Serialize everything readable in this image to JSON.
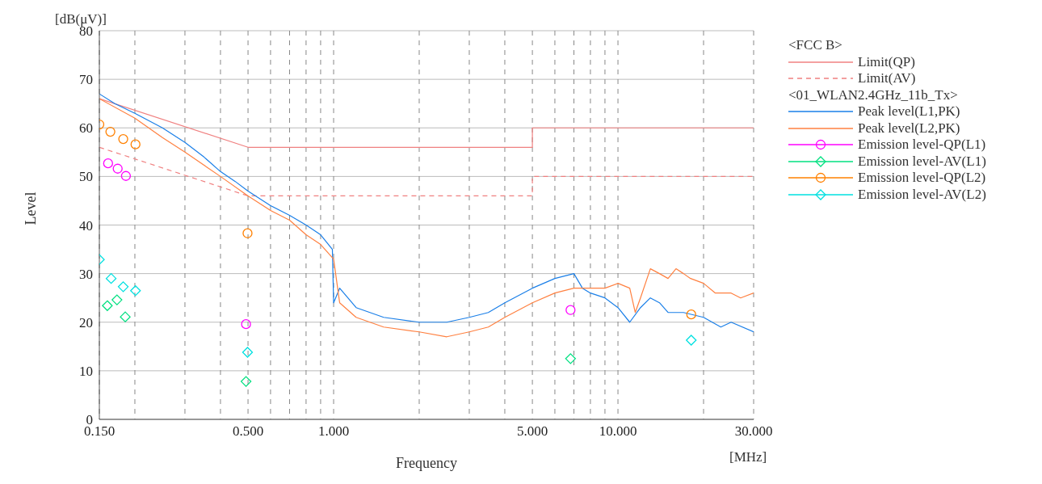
{
  "chart_data": {
    "type": "line",
    "xlabel": "Frequency",
    "ylabel": "Level",
    "log": "x",
    "grid": true,
    "legend": "right",
    "xlim": [
      0.15,
      30
    ],
    "ylim": [
      0,
      80
    ],
    "xticks": [
      {
        "value": 0.15,
        "label": "0.150"
      },
      {
        "value": 0.2,
        "label": null
      },
      {
        "value": 0.3,
        "label": null
      },
      {
        "value": 0.4,
        "label": null
      },
      {
        "value": 0.5,
        "label": "0.500"
      },
      {
        "value": 0.6,
        "label": null
      },
      {
        "value": 0.7,
        "label": null
      },
      {
        "value": 0.8,
        "label": null
      },
      {
        "value": 0.9,
        "label": null
      },
      {
        "value": 1,
        "label": "1.000"
      },
      {
        "value": 2,
        "label": null
      },
      {
        "value": 3,
        "label": null
      },
      {
        "value": 4,
        "label": null
      },
      {
        "value": 5,
        "label": "5.000"
      },
      {
        "value": 6,
        "label": null
      },
      {
        "value": 7,
        "label": null
      },
      {
        "value": 8,
        "label": null
      },
      {
        "value": 9,
        "label": null
      },
      {
        "value": 10,
        "label": "10.000"
      },
      {
        "value": 20,
        "label": null
      },
      {
        "value": 30,
        "label": "30.000"
      }
    ],
    "yticks": [
      0,
      10,
      20,
      30,
      40,
      50,
      60,
      70,
      80
    ],
    "annotations": [
      "[dB(μV)]",
      "[MHz]",
      "<FCC B>",
      "<01_WLAN2.4GHz_11b_Tx>"
    ],
    "series": [
      {
        "name": "Limit(QP)",
        "color": "#f08080",
        "line_style": "solid",
        "marker": "none",
        "x": [
          0.15,
          0.5,
          5,
          5,
          30
        ],
        "values": [
          66,
          56,
          56,
          60,
          60
        ]
      },
      {
        "name": "Limit(AV)",
        "color": "#f08080",
        "line_style": "dashed",
        "marker": "none",
        "x": [
          0.15,
          0.5,
          5,
          5,
          30
        ],
        "values": [
          56,
          46,
          46,
          50,
          50
        ]
      },
      {
        "name": "Peak level(L1,PK)",
        "color": "#1a7fe8",
        "line_style": "solid",
        "marker": "none",
        "x": [
          0.15,
          0.17,
          0.2,
          0.25,
          0.3,
          0.35,
          0.4,
          0.45,
          0.5,
          0.6,
          0.7,
          0.8,
          0.9,
          0.99,
          1.0,
          1.05,
          1.2,
          1.5,
          2,
          2.5,
          3,
          3.5,
          4,
          5,
          6,
          7,
          7.5,
          8,
          9,
          10,
          11,
          12,
          13,
          14,
          15,
          17,
          20,
          23,
          25,
          30
        ],
        "values": [
          67,
          65,
          63,
          60,
          57,
          54,
          51,
          49,
          47,
          44,
          42,
          40,
          38,
          35,
          24,
          27,
          23,
          21,
          20,
          20,
          21,
          22,
          24,
          27,
          29,
          30,
          27,
          26,
          25,
          23,
          20,
          23,
          25,
          24,
          22,
          22,
          21,
          19,
          20,
          18
        ]
      },
      {
        "name": "Peak level(L2,PK)",
        "color": "#ff8040",
        "line_style": "solid",
        "marker": "none",
        "x": [
          0.15,
          0.2,
          0.25,
          0.3,
          0.4,
          0.5,
          0.6,
          0.7,
          0.8,
          0.9,
          1.0,
          1.05,
          1.2,
          1.5,
          2,
          2.5,
          3,
          3.5,
          4,
          5,
          6,
          7,
          8,
          9,
          10,
          11,
          11.5,
          12,
          13,
          14,
          15,
          16,
          17,
          18,
          20,
          22,
          25,
          27,
          30
        ],
        "values": [
          66,
          62,
          58,
          55,
          50,
          46,
          43,
          41,
          38,
          36,
          33,
          24,
          21,
          19,
          18,
          17,
          18,
          19,
          21,
          24,
          26,
          27,
          27,
          27,
          28,
          27,
          22,
          25,
          31,
          30,
          29,
          31,
          30,
          29,
          28,
          26,
          26,
          25,
          26
        ]
      },
      {
        "name": "Emission level-QP(L1)",
        "type": "scatter",
        "color": "#ff00ff",
        "marker": "circle",
        "x": [
          0.161,
          0.174,
          0.186,
          0.492,
          6.81
        ],
        "values": [
          52.7,
          51.6,
          50.1,
          19.6,
          22.5
        ]
      },
      {
        "name": "Emission level-AV(L1)",
        "type": "scatter",
        "color": "#00e080",
        "marker": "diamond",
        "x": [
          0.16,
          0.173,
          0.185,
          0.492,
          6.81
        ],
        "values": [
          23.4,
          24.6,
          21.1,
          7.8,
          12.5
        ]
      },
      {
        "name": "Emission level-QP(L2)",
        "type": "scatter",
        "color": "#ff8000",
        "marker": "circle",
        "x": [
          0.15,
          0.164,
          0.182,
          0.201,
          0.498,
          18.1
        ],
        "values": [
          60.7,
          59.2,
          57.7,
          56.6,
          38.3,
          21.6
        ]
      },
      {
        "name": "Emission level-AV(L2)",
        "type": "scatter",
        "color": "#00e0e0",
        "marker": "diamond",
        "x": [
          0.15,
          0.165,
          0.182,
          0.201,
          0.498,
          18.1
        ],
        "values": [
          32.9,
          29.0,
          27.3,
          26.5,
          13.8,
          16.3
        ]
      }
    ]
  }
}
